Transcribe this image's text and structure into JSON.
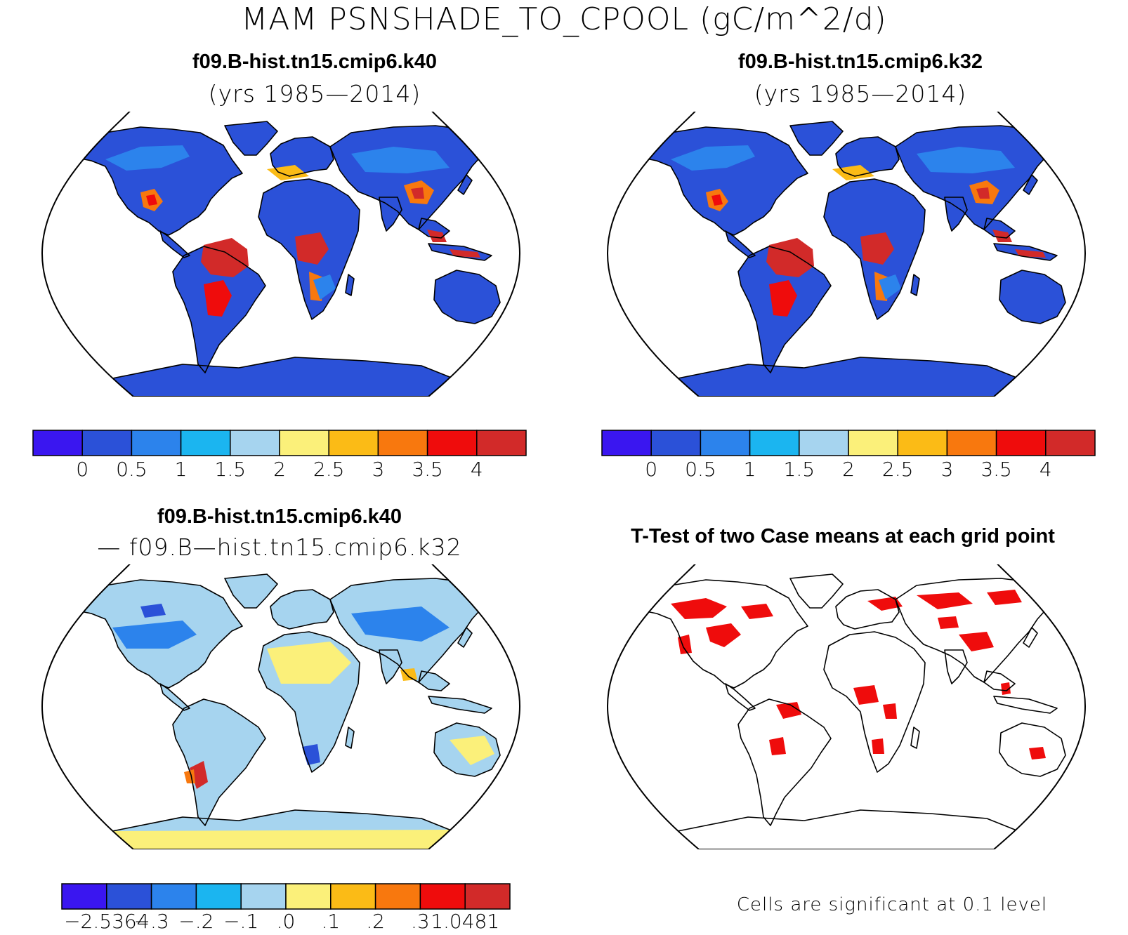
{
  "title": "MAM PSNSHADE_TO_CPOOL (gC/m^2/d)",
  "panels": {
    "top_left": {
      "case": "f09.B-hist.tn15.cmip6.k40",
      "years": "(yrs 1985—2014)"
    },
    "top_right": {
      "case": "f09.B-hist.tn15.cmip6.k32",
      "years": "(yrs 1985—2014)"
    },
    "bottom_left": {
      "case": "f09.B-hist.tn15.cmip6.k40",
      "minus_line": "— f09.B—hist.tn15.cmip6.k32"
    },
    "bottom_right": {
      "title": "T-Test of two Case means at each grid point",
      "note": "Cells are significant at 0.1 level"
    }
  },
  "colorbar_main": {
    "colors": [
      "#3a16f0",
      "#2b51d8",
      "#2c83ec",
      "#1bb5f0",
      "#a6d4ef",
      "#fbf07a",
      "#fbbb16",
      "#f8780e",
      "#ef0c0c",
      "#d22a29"
    ],
    "labels": [
      "0",
      "0.5",
      "1",
      "1.5",
      "2",
      "2.5",
      "3",
      "3.5",
      "4"
    ]
  },
  "colorbar_diff": {
    "colors": [
      "#3a16f0",
      "#2b51d8",
      "#2c83ec",
      "#1bb5f0",
      "#a6d4ef",
      "#fbf07a",
      "#fbbb16",
      "#f8780e",
      "#ef0c0c",
      "#d22a29"
    ],
    "labels": [
      "−2.5364",
      "−.3",
      "−.2",
      "−.1",
      ".0",
      ".1",
      ".2",
      ".3",
      "1.0481"
    ]
  },
  "maps": {
    "ocean_color": "#ffffff",
    "base_land_main": "#2b51d8",
    "base_land_diff": "#a6d4ef",
    "significant_color": "#ef0c0c"
  }
}
